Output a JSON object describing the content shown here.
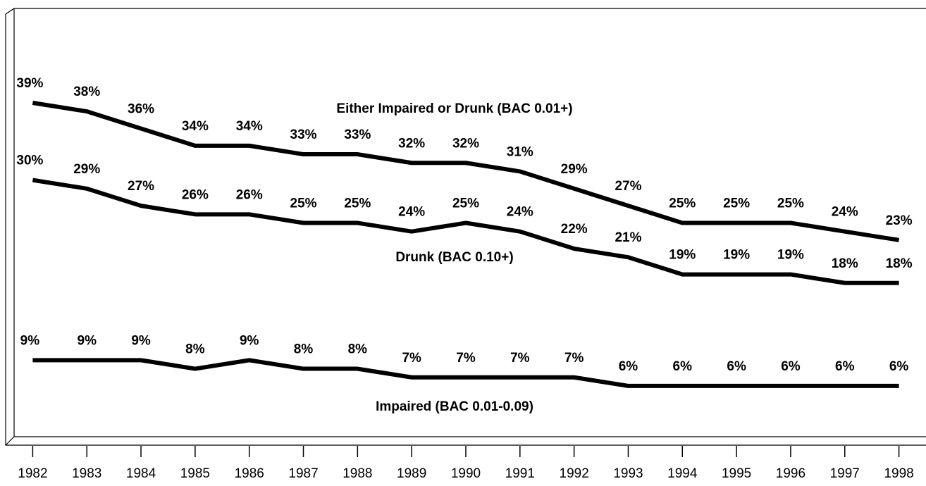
{
  "chart_data": {
    "type": "line",
    "categories": [
      "1982",
      "1983",
      "1984",
      "1985",
      "1986",
      "1987",
      "1988",
      "1989",
      "1990",
      "1991",
      "1992",
      "1993",
      "1994",
      "1995",
      "1996",
      "1997",
      "1998"
    ],
    "ylim": [
      0,
      50
    ],
    "series": [
      {
        "name": "Either Impaired or Drunk (BAC 0.01+)",
        "color": "#000000",
        "values": [
          39,
          38,
          36,
          34,
          34,
          33,
          33,
          32,
          32,
          31,
          29,
          27,
          25,
          25,
          25,
          24,
          23
        ],
        "value_labels": [
          "39%",
          "38%",
          "36%",
          "34%",
          "34%",
          "33%",
          "33%",
          "32%",
          "32%",
          "31%",
          "29%",
          "27%",
          "25%",
          "25%",
          "25%",
          "24%",
          "23%"
        ]
      },
      {
        "name": "Drunk (BAC 0.10+)",
        "color": "#000000",
        "values": [
          30,
          29,
          27,
          26,
          26,
          25,
          25,
          24,
          25,
          24,
          22,
          21,
          19,
          19,
          19,
          18,
          18
        ],
        "value_labels": [
          "30%",
          "29%",
          "27%",
          "26%",
          "26%",
          "25%",
          "25%",
          "24%",
          "25%",
          "24%",
          "22%",
          "21%",
          "19%",
          "19%",
          "19%",
          "18%",
          "18%"
        ]
      },
      {
        "name": "Impaired (BAC 0.01-0.09)",
        "color": "#000000",
        "values": [
          9,
          9,
          9,
          8,
          9,
          8,
          8,
          7,
          7,
          7,
          7,
          6,
          6,
          6,
          6,
          6,
          6
        ],
        "value_labels": [
          "9%",
          "9%",
          "9%",
          "8%",
          "9%",
          "8%",
          "8%",
          "7%",
          "7%",
          "7%",
          "7%",
          "6%",
          "6%",
          "6%",
          "6%",
          "6%",
          "6%"
        ]
      }
    ]
  }
}
